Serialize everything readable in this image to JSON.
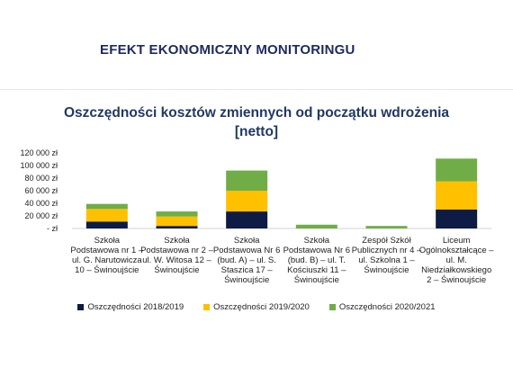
{
  "slide": {
    "title": "EFEKT EKONOMICZNY MONITORINGU"
  },
  "chart_data": {
    "type": "bar",
    "stacked": true,
    "title_line1": "Oszczędności kosztów zmiennych od początku wdrożenia",
    "title_line2": "[netto]",
    "categories": [
      "Szkoła Podstawowa nr 1 – ul. G. Narutowicza 10 – Świnoujście",
      "Szkoła Podstawowa nr 2 – ul. W. Witosa 12 – Świnoujście",
      "Szkoła Podstawowa Nr 6 (bud. A) – ul. S. Staszica 17 – Świnoujście",
      "Szkoła Podstawowa Nr 6 (bud. B) – ul. T. Kościuszki 11 – Świnoujście",
      "Zespół Szkół Publicznych nr 4 – ul. Szkolna 1 – Świnoujście",
      "Liceum Ogólnokształcące – ul. M. Niedziałkowskiego 2 – Świnoujście"
    ],
    "series": [
      {
        "name": "Oszczędności 2018/2019",
        "color": "#0d1b45",
        "values": [
          11000,
          4000,
          27000,
          0,
          0,
          30000
        ]
      },
      {
        "name": "Oszczędności 2019/2020",
        "color": "#ffc000",
        "values": [
          20000,
          15000,
          33000,
          0,
          0,
          45000
        ]
      },
      {
        "name": "Oszczędności 2020/2021",
        "color": "#70ad47",
        "values": [
          8000,
          8000,
          32000,
          6000,
          4000,
          36000
        ]
      }
    ],
    "y_ticks": [
      "- zł",
      "20 000 zł",
      "40 000 zł",
      "60 000 zł",
      "80 000 zł",
      "100 000 zł",
      "120 000 zł"
    ],
    "ylim": [
      0,
      120000
    ],
    "legend_position": "bottom",
    "grid": false
  }
}
